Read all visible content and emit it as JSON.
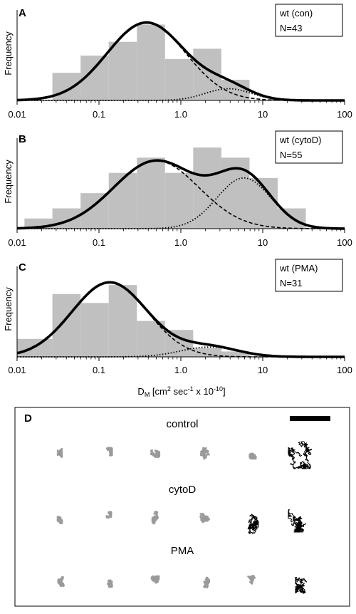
{
  "colors": {
    "histogram_fill": "#c0c0c0",
    "curve": "#000000",
    "track_gray": "#9a9a9a",
    "track_black": "#000000"
  },
  "shared_axis": {
    "tick_labels": [
      "0.01",
      "0.1",
      "1.0",
      "10",
      "100"
    ],
    "xlabel_main": "D",
    "xlabel_sub": "M",
    "xlabel_rest1": " [cm",
    "xlabel_sup1": "2",
    "xlabel_rest2": " sec",
    "xlabel_sup2": "-1",
    "xlabel_rest3": " x 10",
    "xlabel_sup3": "-10",
    "xlabel_rest4": "]"
  },
  "chart_data": [
    {
      "type": "bar",
      "panel": "A",
      "ylabel": "Frequency",
      "legend_line1": "wt (con)",
      "legend_line2": "N=43",
      "xscale": "log",
      "xlim": [
        0.01,
        100
      ],
      "bin_edges": [
        0.027,
        0.0596,
        0.1316,
        0.2905,
        0.641,
        1.415,
        3.125,
        6.9
      ],
      "values": [
        4,
        6.5,
        8.5,
        11,
        6,
        7.5,
        3
      ],
      "ymax": 12.5,
      "peak_component_1": {
        "mu_log10": -0.42,
        "sigma_log10": 0.48,
        "amp": 11.3
      },
      "peak_component_2": {
        "mu_log10": 0.58,
        "sigma_log10": 0.28,
        "amp": 1.7
      }
    },
    {
      "type": "bar",
      "panel": "B",
      "ylabel": "Frequency",
      "legend_line1": "wt (cytoD)",
      "legend_line2": "N=55",
      "xscale": "log",
      "xlim": [
        0.01,
        100
      ],
      "bin_edges": [
        0.0123,
        0.027,
        0.0596,
        0.1316,
        0.2905,
        0.641,
        1.415,
        3.125,
        6.9,
        15.23,
        33.6
      ],
      "values": [
        1,
        2,
        3.5,
        5.5,
        7,
        5.5,
        8,
        7,
        5,
        2
      ],
      "ymax": 8.5,
      "peak_component_1": {
        "mu_log10": -0.3,
        "sigma_log10": 0.52,
        "amp": 6.7
      },
      "peak_component_2": {
        "mu_log10": 0.77,
        "sigma_log10": 0.33,
        "amp": 5.0
      }
    },
    {
      "type": "bar",
      "panel": "C",
      "ylabel": "Frequency",
      "legend_line1": "wt (PMA)",
      "legend_line2": "N=31",
      "xscale": "log",
      "xlim": [
        0.01,
        100
      ],
      "bin_edges": [
        0.01,
        0.027,
        0.0596,
        0.1316,
        0.2905,
        0.641,
        1.415,
        3.125,
        6.9
      ],
      "values": [
        1,
        3.5,
        3,
        4,
        2,
        1.5,
        0.5,
        0.3
      ],
      "ymax": 4.8,
      "peak_component_1": {
        "mu_log10": -0.87,
        "sigma_log10": 0.46,
        "amp": 4.15
      },
      "peak_component_2": {
        "mu_log10": 0.35,
        "sigma_log10": 0.35,
        "amp": 0.55
      }
    }
  ],
  "panel_d": {
    "letter": "D",
    "rows": [
      {
        "label": "control",
        "tracks": [
          "gray",
          "gray",
          "gray",
          "gray",
          "gray",
          "black-large"
        ]
      },
      {
        "label": "cytoD",
        "tracks": [
          "gray",
          "gray",
          "gray",
          "gray",
          "black-tall",
          "black-large"
        ]
      },
      {
        "label": "PMA",
        "tracks": [
          "gray",
          "gray",
          "gray",
          "gray",
          "gray",
          "black-tall"
        ]
      }
    ]
  }
}
